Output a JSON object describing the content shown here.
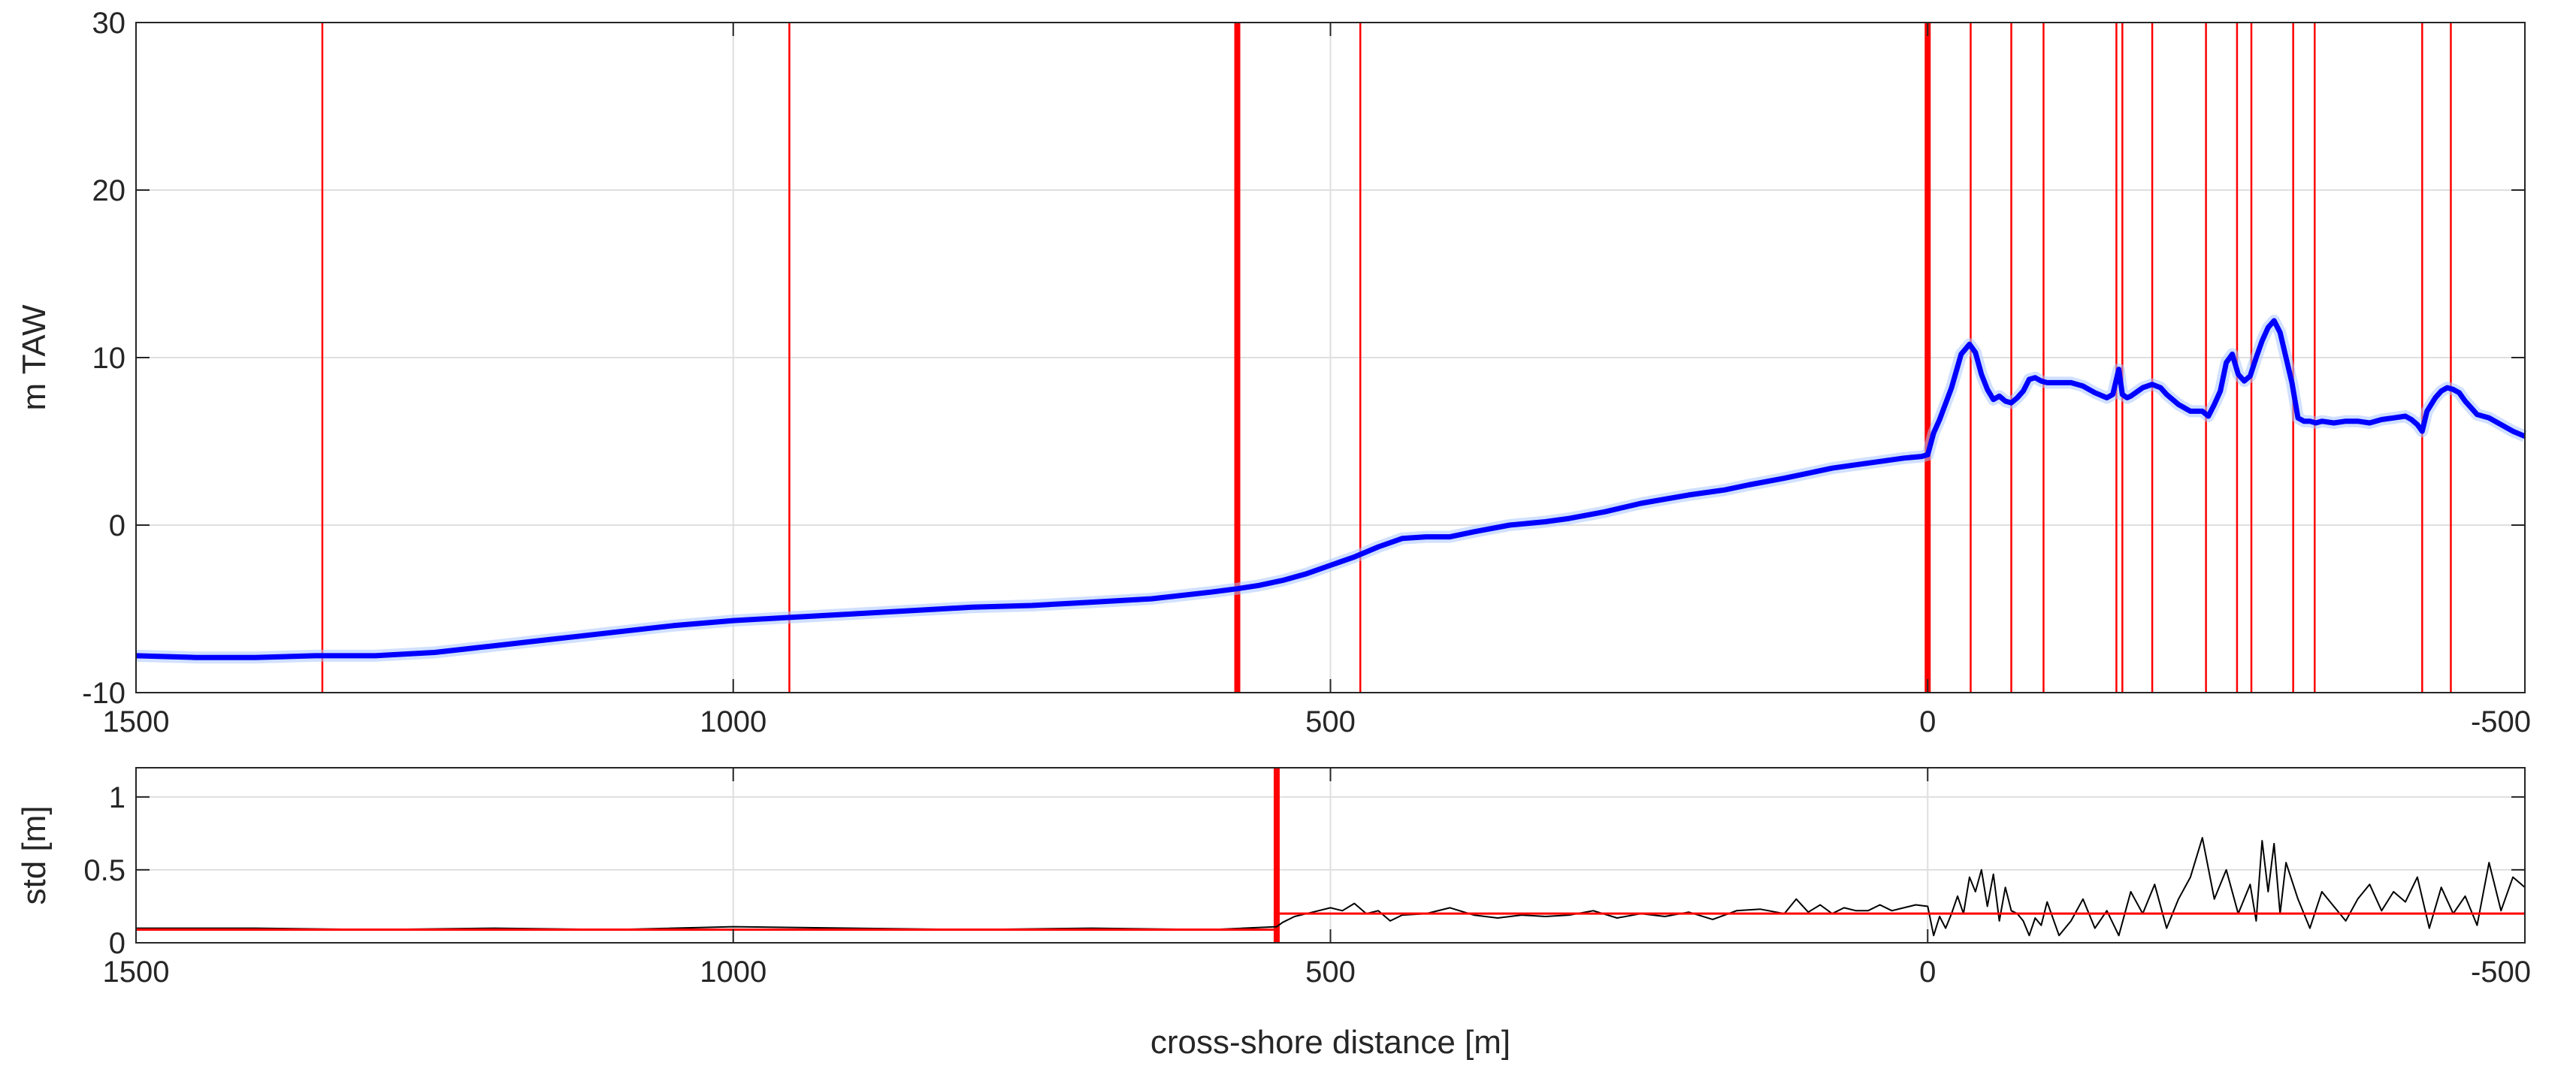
{
  "chart_data": [
    {
      "type": "line",
      "title": "",
      "xlabel": "",
      "ylabel": "m TAW",
      "xlim": [
        1500,
        -500
      ],
      "ylim": [
        -10,
        30
      ],
      "x_reversed": true,
      "grid": true,
      "xticks": [
        1500,
        1000,
        500,
        0,
        -500
      ],
      "xtick_labels": [
        "1500",
        "1000",
        "500",
        "0",
        "-500"
      ],
      "yticks": [
        -10,
        0,
        10,
        20,
        30
      ],
      "ytick_labels": [
        "-10",
        "0",
        "10",
        "20",
        "30"
      ],
      "vertical_lines_thin": [
        1344,
        953,
        475,
        -36,
        -70,
        -97,
        -158,
        -163,
        -188,
        -233,
        -259,
        -271,
        -306,
        -324,
        -414,
        -438
      ],
      "vertical_lines_thick": [
        578,
        0
      ],
      "line_colors": {
        "mean": "#0000ff",
        "threshold": "#ff0000"
      },
      "series": [
        {
          "x": [
            1500,
            1450,
            1400,
            1350,
            1300,
            1250,
            1200,
            1150,
            1100,
            1050,
            1000,
            950,
            900,
            850,
            800,
            750,
            700,
            650,
            600,
            578,
            560,
            540,
            520,
            500,
            480,
            460,
            440,
            420,
            400,
            380,
            350,
            320,
            300,
            270,
            240,
            200,
            170,
            150,
            120,
            100,
            80,
            60,
            40,
            20,
            5,
            0,
            -5,
            -10,
            -20,
            -28,
            -35,
            -40,
            -45,
            -50,
            -55,
            -60,
            -65,
            -70,
            -75,
            -80,
            -85,
            -90,
            -95,
            -100,
            -110,
            -120,
            -130,
            -140,
            -150,
            -155,
            -160,
            -163,
            -167,
            -170,
            -180,
            -188,
            -195,
            -200,
            -210,
            -220,
            -230,
            -235,
            -240,
            -245,
            -250,
            -255,
            -260,
            -265,
            -270,
            -275,
            -280,
            -285,
            -290,
            -295,
            -300,
            -305,
            -310,
            -315,
            -320,
            -325,
            -330,
            -340,
            -350,
            -360,
            -370,
            -380,
            -390,
            -400,
            -405,
            -410,
            -414,
            -418,
            -425,
            -430,
            -435,
            -440,
            -445,
            -450,
            -455,
            -460,
            -470,
            -480,
            -490,
            -500
          ],
          "y": [
            -7.8,
            -7.9,
            -7.9,
            -7.8,
            -7.8,
            -7.6,
            -7.2,
            -6.8,
            -6.4,
            -6.0,
            -5.7,
            -5.5,
            -5.3,
            -5.1,
            -4.9,
            -4.8,
            -4.6,
            -4.4,
            -4.0,
            -3.8,
            -3.6,
            -3.3,
            -2.9,
            -2.4,
            -1.9,
            -1.3,
            -0.8,
            -0.7,
            -0.7,
            -0.4,
            0.0,
            0.2,
            0.4,
            0.8,
            1.3,
            1.8,
            2.1,
            2.4,
            2.8,
            3.1,
            3.4,
            3.6,
            3.8,
            4.0,
            4.1,
            4.2,
            5.5,
            6.3,
            8.2,
            10.2,
            10.8,
            10.3,
            9.0,
            8.1,
            7.5,
            7.7,
            7.4,
            7.3,
            7.6,
            8.0,
            8.7,
            8.8,
            8.6,
            8.5,
            8.5,
            8.5,
            8.3,
            7.9,
            7.6,
            7.8,
            9.3,
            7.8,
            7.6,
            7.7,
            8.2,
            8.4,
            8.2,
            7.8,
            7.2,
            6.8,
            6.8,
            6.5,
            7.2,
            8.0,
            9.7,
            10.2,
            9.0,
            8.6,
            8.9,
            10.0,
            11.0,
            11.8,
            12.2,
            11.5,
            10.0,
            8.5,
            6.4,
            6.2,
            6.2,
            6.1,
            6.2,
            6.1,
            6.2,
            6.2,
            6.1,
            6.3,
            6.4,
            6.5,
            6.3,
            6.0,
            5.6,
            6.8,
            7.6,
            8.0,
            8.2,
            8.1,
            7.9,
            7.4,
            7.0,
            6.6,
            6.4,
            6.0,
            5.6,
            5.3
          ]
        }
      ]
    },
    {
      "type": "line",
      "title": "",
      "xlabel": "cross-shore distance [m]",
      "ylabel": "std [m]",
      "xlim": [
        1500,
        -500
      ],
      "ylim": [
        0,
        1.2
      ],
      "x_reversed": true,
      "grid": true,
      "xticks": [
        1500,
        1000,
        500,
        0,
        -500
      ],
      "xtick_labels": [
        "1500",
        "1000",
        "500",
        "0",
        "-500"
      ],
      "yticks": [
        0,
        0.5,
        1
      ],
      "ytick_labels": [
        "0",
        "0.5",
        "1"
      ],
      "vertical_lines_thick": [
        545
      ],
      "thresholds": [
        {
          "x": [
            1500,
            545
          ],
          "y": 0.09
        },
        {
          "x": [
            545,
            -500
          ],
          "y": 0.2
        }
      ],
      "line_colors": {
        "std": "#000000",
        "threshold": "#ff0000"
      },
      "series": [
        {
          "x": [
            1500,
            1400,
            1300,
            1200,
            1100,
            1000,
            900,
            800,
            700,
            600,
            545,
            540,
            530,
            520,
            510,
            500,
            490,
            480,
            470,
            460,
            450,
            440,
            420,
            400,
            380,
            360,
            340,
            320,
            300,
            280,
            260,
            240,
            220,
            200,
            180,
            160,
            140,
            120,
            110,
            100,
            90,
            80,
            70,
            60,
            50,
            40,
            30,
            20,
            10,
            0,
            -5,
            -10,
            -15,
            -20,
            -25,
            -30,
            -35,
            -40,
            -45,
            -50,
            -55,
            -60,
            -65,
            -70,
            -75,
            -80,
            -85,
            -90,
            -95,
            -100,
            -110,
            -120,
            -130,
            -140,
            -150,
            -160,
            -170,
            -180,
            -190,
            -200,
            -210,
            -220,
            -230,
            -240,
            -250,
            -260,
            -270,
            -275,
            -280,
            -285,
            -290,
            -295,
            -300,
            -310,
            -320,
            -330,
            -340,
            -350,
            -360,
            -370,
            -380,
            -390,
            -400,
            -410,
            -420,
            -430,
            -440,
            -450,
            -460,
            -470,
            -480,
            -490,
            -500
          ],
          "y": [
            0.1,
            0.1,
            0.09,
            0.1,
            0.09,
            0.11,
            0.1,
            0.09,
            0.1,
            0.09,
            0.11,
            0.14,
            0.18,
            0.2,
            0.22,
            0.24,
            0.22,
            0.27,
            0.2,
            0.22,
            0.15,
            0.19,
            0.2,
            0.24,
            0.19,
            0.17,
            0.19,
            0.18,
            0.19,
            0.22,
            0.17,
            0.2,
            0.18,
            0.21,
            0.16,
            0.22,
            0.23,
            0.2,
            0.3,
            0.21,
            0.26,
            0.2,
            0.24,
            0.22,
            0.22,
            0.26,
            0.22,
            0.24,
            0.26,
            0.25,
            0.05,
            0.18,
            0.1,
            0.2,
            0.32,
            0.2,
            0.45,
            0.35,
            0.5,
            0.25,
            0.47,
            0.15,
            0.38,
            0.22,
            0.2,
            0.15,
            0.05,
            0.17,
            0.12,
            0.28,
            0.05,
            0.15,
            0.3,
            0.1,
            0.22,
            0.05,
            0.35,
            0.2,
            0.4,
            0.1,
            0.3,
            0.45,
            0.72,
            0.3,
            0.5,
            0.2,
            0.4,
            0.15,
            0.7,
            0.35,
            0.68,
            0.2,
            0.55,
            0.3,
            0.1,
            0.35,
            0.25,
            0.15,
            0.3,
            0.4,
            0.22,
            0.35,
            0.28,
            0.45,
            0.1,
            0.38,
            0.2,
            0.32,
            0.12,
            0.55,
            0.22,
            0.45,
            0.38
          ]
        }
      ]
    }
  ]
}
